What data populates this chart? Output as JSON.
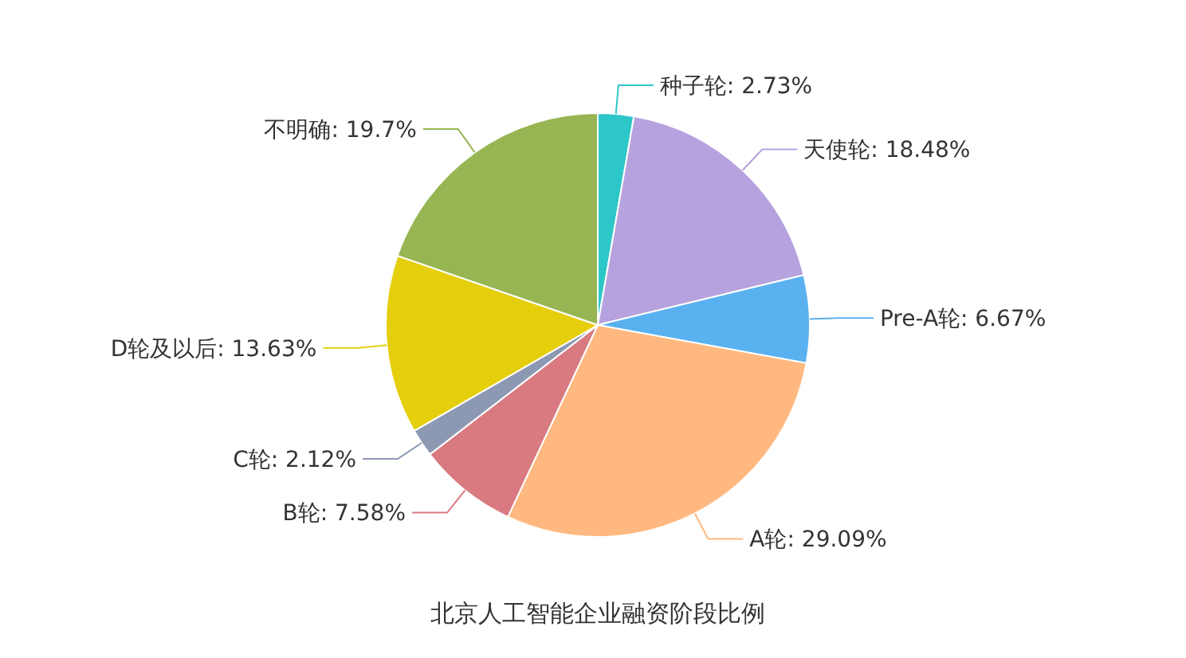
{
  "chart_data": {
    "type": "pie",
    "title": "北京人工智能企业融资阶段比例",
    "categories": [
      "种子轮",
      "天使轮",
      "Pre-A轮",
      "A轮",
      "B轮",
      "C轮",
      "D轮及以后",
      "不明确"
    ],
    "values": [
      2.73,
      18.48,
      6.67,
      29.09,
      7.58,
      2.12,
      13.63,
      19.7
    ],
    "value_labels": [
      "2.73%",
      "18.48%",
      "6.67%",
      "29.09%",
      "7.58%",
      "2.12%",
      "13.63%",
      "19.7%"
    ],
    "colors": [
      "#2ec7c9",
      "#b6a2de",
      "#5ab1ef",
      "#ffb980",
      "#d87a80",
      "#8d98b3",
      "#e5cf0d",
      "#97b552"
    ]
  }
}
